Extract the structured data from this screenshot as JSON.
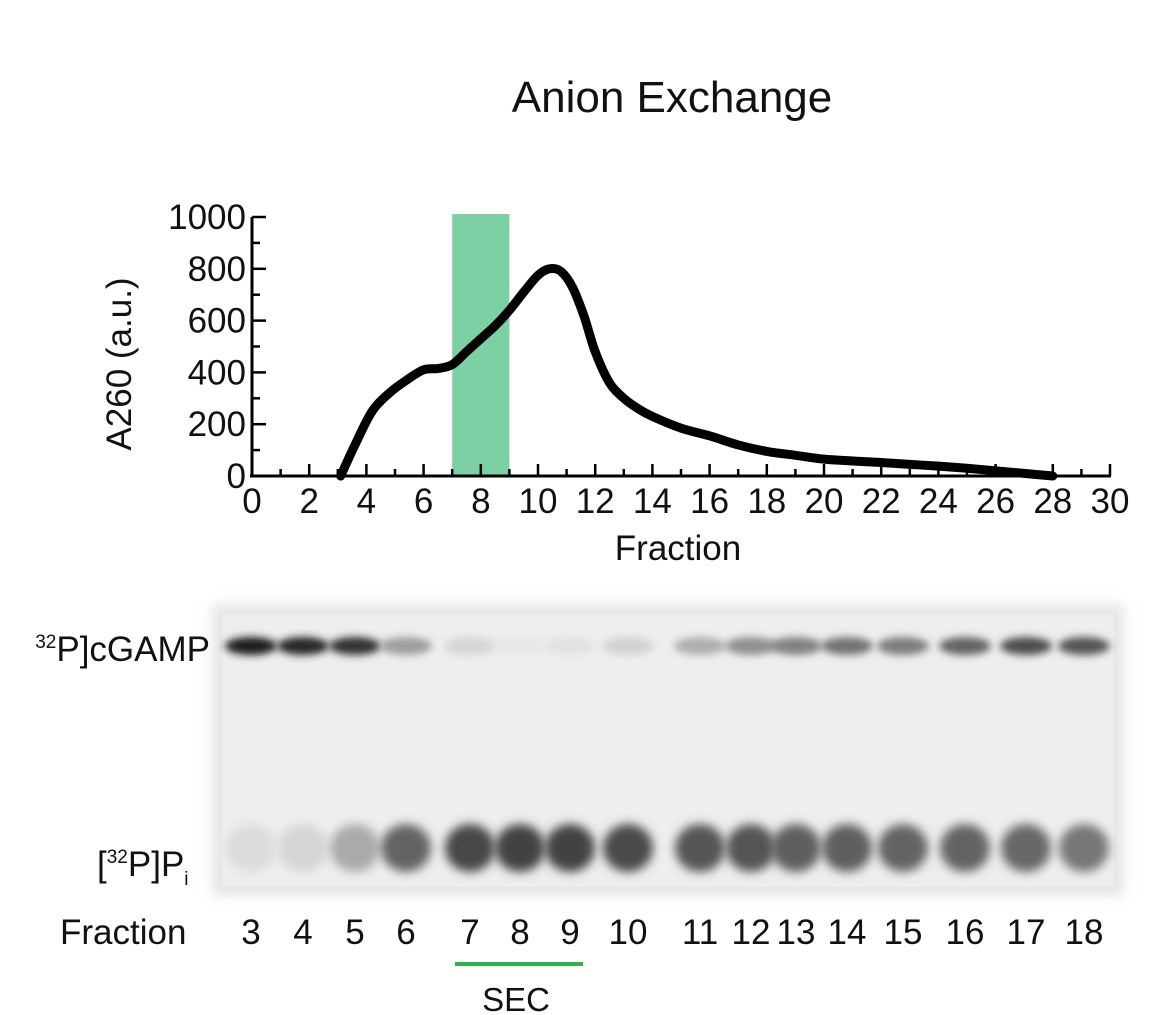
{
  "chart_data": {
    "type": "line",
    "title": "Anion Exchange",
    "xlabel": "Fraction",
    "ylabel": "A260 (a.u.)",
    "xlim": [
      0,
      30
    ],
    "ylim": [
      0,
      1000
    ],
    "xticks": [
      0,
      2,
      4,
      6,
      8,
      10,
      12,
      14,
      16,
      18,
      20,
      22,
      24,
      26,
      28,
      30
    ],
    "yticks": [
      0,
      200,
      400,
      600,
      800,
      1000
    ],
    "grid": false,
    "legend": "none",
    "line_color": "#000000",
    "highlight": {
      "x_range": [
        7,
        9
      ],
      "color": "#5cc48c"
    },
    "series": [
      {
        "x": [
          3.1,
          3.6,
          4.2,
          4.8,
          5.4,
          6.0,
          6.5,
          7.0,
          7.5,
          8.0,
          8.5,
          9.0,
          9.5,
          10.0,
          10.4,
          10.8,
          11.2,
          11.6,
          12.0,
          12.5,
          13.0,
          13.5,
          14.0,
          15.0,
          16.0,
          17.0,
          18.0,
          19.0,
          20.0,
          21.0,
          22.0,
          23.0,
          24.0,
          25.0,
          26.0,
          27.0,
          28.0
        ],
        "y": [
          0,
          120,
          250,
          320,
          370,
          410,
          415,
          430,
          480,
          530,
          580,
          640,
          710,
          775,
          800,
          790,
          730,
          620,
          480,
          360,
          300,
          260,
          230,
          185,
          155,
          120,
          95,
          80,
          65,
          58,
          52,
          45,
          38,
          30,
          20,
          10,
          0
        ]
      }
    ]
  },
  "gel": {
    "band_labels": {
      "cgamp_sup": "32",
      "cgamp_main": "P]cGAMP",
      "pi_open": "[",
      "pi_sup": "32",
      "pi_main": "P]P",
      "pi_sub": "i"
    },
    "lane_label": "Fraction",
    "lanes": [
      "3",
      "4",
      "5",
      "6",
      "7",
      "8",
      "9",
      "10",
      "11",
      "12",
      "13",
      "14",
      "15",
      "16",
      "17",
      "18"
    ],
    "cgamp_intensity": [
      0.95,
      0.9,
      0.85,
      0.35,
      0.1,
      0.02,
      0.04,
      0.12,
      0.28,
      0.42,
      0.48,
      0.55,
      0.5,
      0.62,
      0.72,
      0.68
    ],
    "pi_intensity": [
      0.08,
      0.12,
      0.35,
      0.72,
      0.88,
      0.9,
      0.9,
      0.86,
      0.8,
      0.8,
      0.75,
      0.75,
      0.72,
      0.72,
      0.7,
      0.62
    ],
    "sec_label": "SEC",
    "sec_color": "#2db34a"
  }
}
